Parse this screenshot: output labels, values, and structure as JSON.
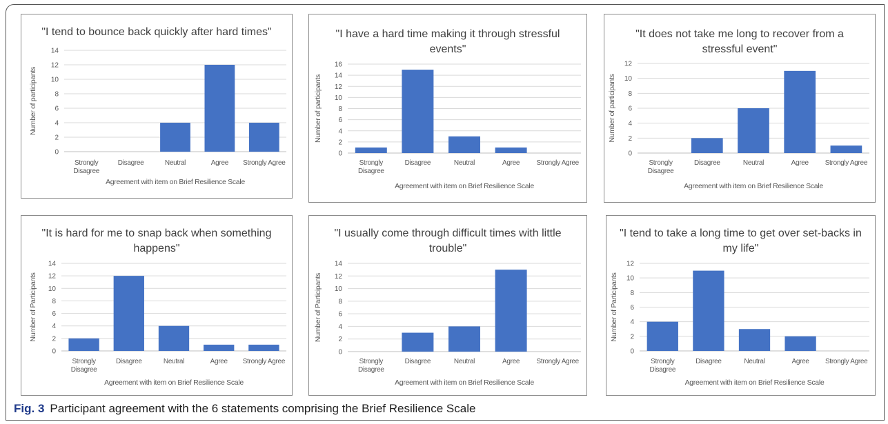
{
  "figure": {
    "label": "Fig. 3",
    "caption": "Participant agreement with the 6 statements comprising the Brief Resilience Scale"
  },
  "colors": {
    "bar": "#4472c4",
    "grid": "#d9d9d9",
    "text": "#595959",
    "title": "#404040"
  },
  "chart_data": [
    {
      "type": "bar",
      "title_lines": [
        "\"I tend to bounce back quickly after hard times\""
      ],
      "xlabel": "Agreement with item on Brief Resilience Scale",
      "ylabel": "Number of participants",
      "categories": [
        [
          "Strongly",
          "Disagree"
        ],
        [
          "Disagree"
        ],
        [
          "Neutral"
        ],
        [
          "Agree"
        ],
        [
          "Strongly Agree"
        ]
      ],
      "values": [
        0,
        0,
        4,
        12,
        4
      ],
      "ylim": [
        0,
        14
      ],
      "yticks": [
        0,
        2,
        4,
        6,
        8,
        10,
        12,
        14
      ]
    },
    {
      "type": "bar",
      "title_lines": [
        "\"I  have a hard time making it through stressful",
        "events\""
      ],
      "xlabel": "Agreement with item on Brief Resilience Scale",
      "ylabel": "Number of participants",
      "categories": [
        [
          "Strongly",
          "Disagree"
        ],
        [
          "Disagree"
        ],
        [
          "Neutral"
        ],
        [
          "Agree"
        ],
        [
          "Strongly Agree"
        ]
      ],
      "values": [
        1,
        15,
        3,
        1,
        0
      ],
      "ylim": [
        0,
        16
      ],
      "yticks": [
        0,
        2,
        4,
        6,
        8,
        10,
        12,
        14,
        16
      ]
    },
    {
      "type": "bar",
      "title_lines": [
        "\"It  does not take me long to recover from a",
        "stressful event\""
      ],
      "xlabel": "Agreement with item on Brief Resilience Scale",
      "ylabel": "Number of participants",
      "categories": [
        [
          "Strongly",
          "Disagree"
        ],
        [
          "Disagree"
        ],
        [
          "Neutral"
        ],
        [
          "Agree"
        ],
        [
          "Strongly Agree"
        ]
      ],
      "values": [
        0,
        2,
        6,
        11,
        1
      ],
      "ylim": [
        0,
        12
      ],
      "yticks": [
        0,
        2,
        4,
        6,
        8,
        10,
        12
      ]
    },
    {
      "type": "bar",
      "title_lines": [
        "\"It  is hard for me to snap back when something",
        "happens\""
      ],
      "xlabel": "Agreement with item on Brief Resilience Scale",
      "ylabel": "Number of Participants",
      "categories": [
        [
          "Strongly",
          "Disagree"
        ],
        [
          "Disagree"
        ],
        [
          "Neutral"
        ],
        [
          "Agree"
        ],
        [
          "Strongly Agree"
        ]
      ],
      "values": [
        2,
        12,
        4,
        1,
        1
      ],
      "ylim": [
        0,
        14
      ],
      "yticks": [
        0,
        2,
        4,
        6,
        8,
        10,
        12,
        14
      ]
    },
    {
      "type": "bar",
      "title_lines": [
        "\"I  usually come through difficult times with little",
        "trouble\""
      ],
      "xlabel": "Agreement with item on Brief Resilience Scale",
      "ylabel": "Number of Participants",
      "categories": [
        [
          "Strongly",
          "Disagree"
        ],
        [
          "Disagree"
        ],
        [
          "Neutral"
        ],
        [
          "Agree"
        ],
        [
          "Strongly Agree"
        ]
      ],
      "values": [
        0,
        3,
        4,
        13,
        0
      ],
      "ylim": [
        0,
        14
      ],
      "yticks": [
        0,
        2,
        4,
        6,
        8,
        10,
        12,
        14
      ]
    },
    {
      "type": "bar",
      "title_lines": [
        "\"I  tend to take a long time to get over set-backs  in",
        "my life\""
      ],
      "xlabel": "Agreement with item on Brief Resilience Scale",
      "ylabel": "Number of Participants",
      "categories": [
        [
          "Strongly",
          "Disagree"
        ],
        [
          "Disagree"
        ],
        [
          "Neutral"
        ],
        [
          "Agree"
        ],
        [
          "Strongly Agree"
        ]
      ],
      "values": [
        4,
        11,
        3,
        2,
        0
      ],
      "ylim": [
        0,
        12
      ],
      "yticks": [
        0,
        2,
        4,
        6,
        8,
        10,
        12
      ]
    }
  ]
}
